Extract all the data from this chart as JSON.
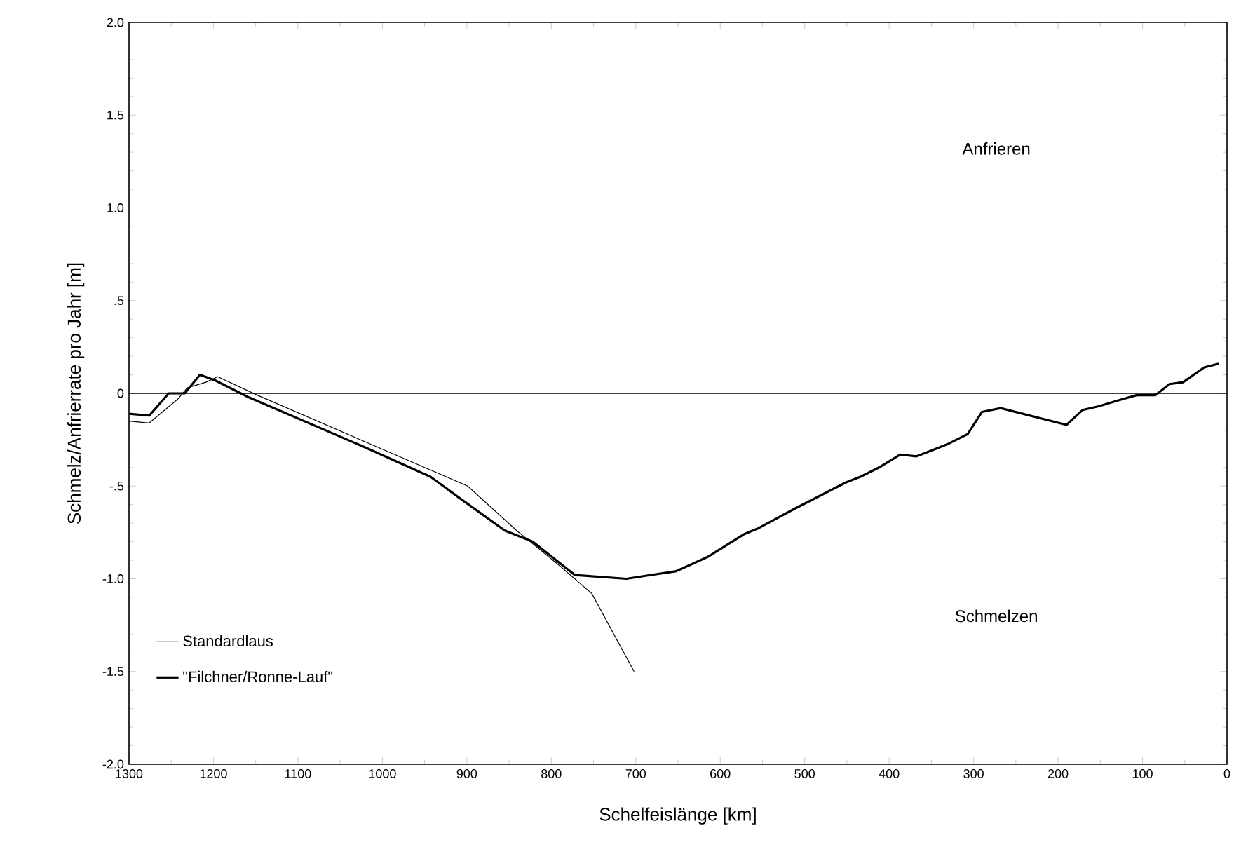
{
  "chart_data": {
    "type": "line",
    "xlabel": "Schelfeislänge [km]",
    "ylabel": "Schmelz/Anfrierrate pro Jahr [m]",
    "annotations": [
      "Anfrieren",
      "Schmelzen"
    ],
    "series": [
      {
        "name": "Standardlaus",
        "color": "#000000",
        "x": [
          1300,
          1276,
          1242,
          1231,
          1209,
          1195,
          1148,
          1021,
          899,
          841,
          790,
          752,
          702
        ],
        "values": [
          -0.15,
          -0.16,
          -0.03,
          0.03,
          0.06,
          0.09,
          -0.01,
          -0.26,
          -0.5,
          -0.74,
          -0.93,
          -1.08,
          -1.5
        ]
      },
      {
        "name": "\"Filchner/Ronne-Lauf\"",
        "color": "#000000",
        "x": [
          1300,
          1276,
          1253,
          1234,
          1216,
          1198,
          1159,
          1021,
          943,
          910,
          855,
          822,
          772,
          711,
          683,
          653,
          633,
          614,
          572,
          556,
          511,
          451,
          434,
          412,
          387,
          368,
          345,
          329,
          307,
          290,
          268,
          190,
          171,
          152,
          130,
          107,
          85,
          68,
          52,
          27,
          10
        ],
        "values": [
          -0.11,
          -0.12,
          0.0,
          0.0,
          0.1,
          0.07,
          -0.02,
          -0.29,
          -0.45,
          -0.56,
          -0.74,
          -0.8,
          -0.98,
          -1.0,
          -0.98,
          -0.96,
          -0.92,
          -0.88,
          -0.76,
          -0.73,
          -0.62,
          -0.48,
          -0.45,
          -0.4,
          -0.33,
          -0.34,
          -0.3,
          -0.27,
          -0.22,
          -0.1,
          -0.08,
          -0.17,
          -0.09,
          -0.07,
          -0.04,
          -0.01,
          -0.01,
          0.05,
          0.06,
          0.14,
          0.16
        ]
      }
    ],
    "xlim": [
      1300,
      0
    ],
    "xticks": [
      1300,
      1200,
      1100,
      1000,
      900,
      800,
      700,
      600,
      500,
      400,
      300,
      200,
      100,
      0
    ],
    "ylim": [
      -2.0,
      2.0
    ],
    "yticks": [
      {
        "value": -2.0,
        "label": "-2.0"
      },
      {
        "value": -1.5,
        "label": "-1.5"
      },
      {
        "value": -1.0,
        "label": "-1.0"
      },
      {
        "value": -0.5,
        "label": "-.5"
      },
      {
        "value": 0,
        "label": "0"
      },
      {
        "value": 0.5,
        "label": ".5"
      },
      {
        "value": 1.0,
        "label": "1.0"
      },
      {
        "value": 1.5,
        "label": "1.5"
      },
      {
        "value": 2.0,
        "label": "2.0"
      }
    ],
    "ref_lines": [
      {
        "axis": "y",
        "value": 0,
        "color": "#000000"
      }
    ],
    "grid": false,
    "legend": "bottom left",
    "marker": "none",
    "line_style": "solid"
  }
}
